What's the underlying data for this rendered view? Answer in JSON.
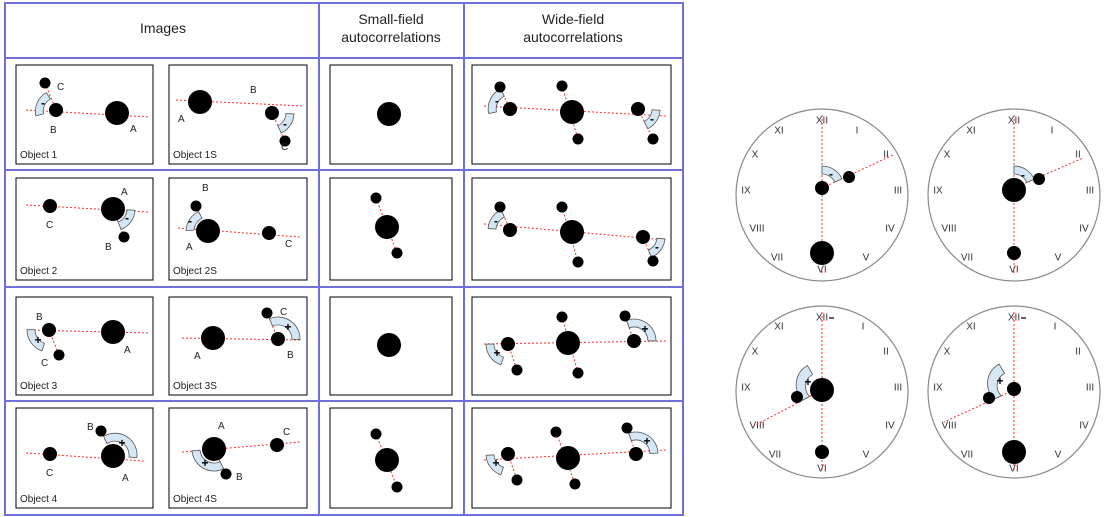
{
  "table": {
    "headers": {
      "images": "Images",
      "small": [
        "Small-field",
        "autocorrelations"
      ],
      "wide": [
        "Wide-field",
        "autocorrelations"
      ]
    },
    "rows": [
      {
        "left": {
          "caption": "Object 1",
          "labels": [
            "C",
            "B",
            "A"
          ],
          "sign": "-"
        },
        "right": {
          "caption": "Object 1S",
          "labels": [
            "A",
            "B",
            "C"
          ],
          "sign": "-"
        },
        "wide_signs": [
          "-",
          "-"
        ]
      },
      {
        "left": {
          "caption": "Object 2",
          "labels": [
            "C",
            "A",
            "B"
          ],
          "sign": "-"
        },
        "right": {
          "caption": "Object 2S",
          "labels": [
            "B",
            "A",
            "C"
          ],
          "sign": "-"
        },
        "wide_signs": [
          "-",
          "-"
        ]
      },
      {
        "left": {
          "caption": "Object 3",
          "labels": [
            "B",
            "C",
            "A"
          ],
          "sign": "+"
        },
        "right": {
          "caption": "Object 3S",
          "labels": [
            "A",
            "C",
            "B"
          ],
          "sign": "+"
        },
        "wide_signs": [
          "+",
          "+"
        ]
      },
      {
        "left": {
          "caption": "Object 4",
          "labels": [
            "C",
            "B",
            "A"
          ],
          "sign": "+"
        },
        "right": {
          "caption": "Object 4S",
          "labels": [
            "A",
            "C",
            "B"
          ],
          "sign": "+"
        },
        "wide_signs": [
          "+",
          "+"
        ]
      }
    ]
  },
  "clock_numerals": [
    "XII",
    "I",
    "II",
    "III",
    "IV",
    "V",
    "VI",
    "VII",
    "VIII",
    "IX",
    "X",
    "XI"
  ],
  "clocks": [
    {
      "sign": "-"
    },
    {
      "sign": "-"
    },
    {
      "sign": "+"
    },
    {
      "sign": "+"
    }
  ],
  "colors": {
    "table_border": "#7070dd",
    "guide_line": "#ff2a2a",
    "wedge_fill": "#d5e7f5",
    "dot": "#000000",
    "clock_border": "#8a8a8a"
  }
}
